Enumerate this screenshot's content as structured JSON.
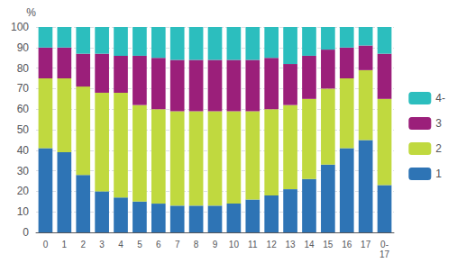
{
  "chart_data": {
    "type": "bar",
    "stacked": true,
    "ylabel": "%",
    "categories": [
      "0",
      "1",
      "2",
      "3",
      "4",
      "5",
      "6",
      "7",
      "8",
      "9",
      "10",
      "11",
      "12",
      "13",
      "14",
      "15",
      "16",
      "17",
      "0-\n17"
    ],
    "series": [
      {
        "name": "1",
        "color": "#2E74B5",
        "values": [
          41,
          39,
          28,
          20,
          17,
          15,
          14,
          13,
          13,
          13,
          14,
          16,
          18,
          21,
          26,
          33,
          41,
          45,
          23
        ]
      },
      {
        "name": "2",
        "color": "#C0D93F",
        "values": [
          34,
          36,
          43,
          48,
          51,
          47,
          46,
          46,
          46,
          46,
          45,
          43,
          42,
          41,
          39,
          37,
          34,
          34,
          42
        ]
      },
      {
        "name": "3",
        "color": "#9B1F7A",
        "values": [
          15,
          15,
          16,
          19,
          18,
          24,
          25,
          25,
          25,
          25,
          25,
          25,
          25,
          20,
          21,
          19,
          15,
          12,
          22
        ]
      },
      {
        "name": "4-",
        "color": "#2CBEBE",
        "values": [
          10,
          10,
          13,
          13,
          14,
          14,
          15,
          16,
          16,
          16,
          16,
          16,
          15,
          18,
          14,
          11,
          10,
          9,
          13
        ]
      }
    ],
    "ylim": [
      0,
      100
    ],
    "yticks": [
      0,
      10,
      20,
      30,
      40,
      50,
      60,
      70,
      80,
      90,
      100
    ],
    "grid": true,
    "legend": "right"
  }
}
